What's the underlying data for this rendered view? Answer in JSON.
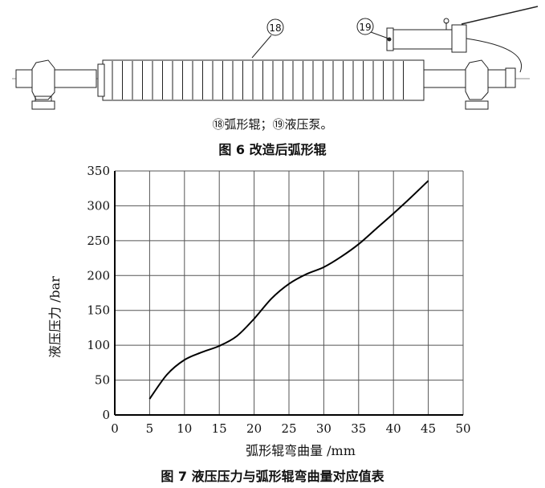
{
  "figure6": {
    "callout_18": "⑱",
    "callout_19": "⑲",
    "legend": "⑱弧形辊；⑲液压泵。",
    "caption": "图 6  改造后弧形辊"
  },
  "figure7": {
    "caption": "图 7  液压压力与弧形辊弯曲量对应值表"
  },
  "chart_data": {
    "type": "line",
    "title": "",
    "xlabel": "弧形辊弯曲量 /mm",
    "ylabel": "液压压力 /bar",
    "xlim": [
      0,
      50
    ],
    "ylim": [
      0,
      350
    ],
    "xticks": [
      0,
      5,
      10,
      15,
      20,
      25,
      30,
      35,
      40,
      45,
      50
    ],
    "yticks": [
      0,
      50,
      100,
      150,
      200,
      250,
      300,
      350
    ],
    "grid": true,
    "legend": "none",
    "series": [
      {
        "color": "#000000",
        "x": [
          5,
          7.5,
          10,
          12.5,
          15,
          17.5,
          20,
          22.5,
          25,
          27.5,
          30,
          32.5,
          35,
          37.5,
          40,
          42.5,
          45
        ],
        "y": [
          23,
          58,
          79,
          90,
          99,
          113,
          138,
          167,
          188,
          202,
          212,
          227,
          245,
          267,
          289,
          312,
          336
        ]
      }
    ]
  }
}
